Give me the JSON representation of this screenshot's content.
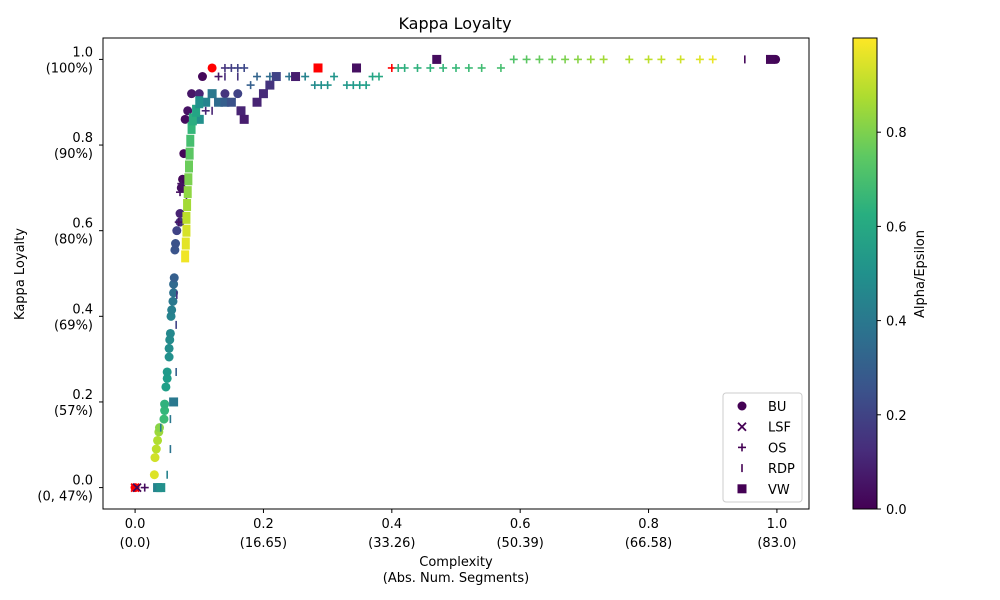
{
  "chart_data": {
    "type": "scatter",
    "title": "Kappa Loyalty",
    "xlabel": "Complexity",
    "xlabel2": "(Abs. Num. Segments)",
    "ylabel": "Kappa Loyalty",
    "colorbar_label": "Alpha/Epsilon",
    "xlim": [
      -0.05,
      1.05
    ],
    "ylim": [
      -0.05,
      1.05
    ],
    "x_ticks": [
      {
        "value": 0.0,
        "label": "0.0",
        "sub": "(0.0)"
      },
      {
        "value": 0.2,
        "label": "0.2",
        "sub": "(16.65)"
      },
      {
        "value": 0.4,
        "label": "0.4",
        "sub": "(33.26)"
      },
      {
        "value": 0.6,
        "label": "0.6",
        "sub": "(50.39)"
      },
      {
        "value": 0.8,
        "label": "0.8",
        "sub": "(66.58)"
      },
      {
        "value": 1.0,
        "label": "1.0",
        "sub": "(83.0)"
      }
    ],
    "y_ticks": [
      {
        "value": 0.0,
        "label": "0.0",
        "sub": "(0, 47%)"
      },
      {
        "value": 0.2,
        "label": "0.2",
        "sub": "(57%)"
      },
      {
        "value": 0.4,
        "label": "0.4",
        "sub": "(69%)"
      },
      {
        "value": 0.6,
        "label": "0.6",
        "sub": "(80%)"
      },
      {
        "value": 0.8,
        "label": "0.8",
        "sub": "(90%)"
      },
      {
        "value": 1.0,
        "label": "1.0",
        "sub": "(100%)"
      }
    ],
    "colorbar": {
      "min": 0.0,
      "max": 1.0,
      "ticks": [
        "0.0",
        "0.2",
        "0.4",
        "0.6",
        "0.8"
      ],
      "tick_values": [
        0.0,
        0.2,
        0.4,
        0.6,
        0.8
      ],
      "colormap": "viridis"
    },
    "legend": {
      "position": "lower-right",
      "entries": [
        "BU",
        "LSF",
        "OS",
        "RDP",
        "VW"
      ]
    },
    "highlight_color": "#ff0000",
    "series": [
      {
        "name": "BU",
        "marker": "circle",
        "points": [
          [
            0.03,
            0.03,
            0.95
          ],
          [
            0.031,
            0.07,
            0.93
          ],
          [
            0.033,
            0.09,
            0.9
          ],
          [
            0.035,
            0.11,
            0.88
          ],
          [
            0.037,
            0.13,
            0.85
          ],
          [
            0.038,
            0.14,
            0.82
          ],
          [
            0.045,
            0.16,
            0.68
          ],
          [
            0.046,
            0.18,
            0.66
          ],
          [
            0.046,
            0.195,
            0.64
          ],
          [
            0.048,
            0.235,
            0.56
          ],
          [
            0.05,
            0.255,
            0.55
          ],
          [
            0.05,
            0.27,
            0.54
          ],
          [
            0.053,
            0.305,
            0.5
          ],
          [
            0.053,
            0.325,
            0.49
          ],
          [
            0.054,
            0.345,
            0.48
          ],
          [
            0.055,
            0.36,
            0.47
          ],
          [
            0.056,
            0.4,
            0.45
          ],
          [
            0.057,
            0.415,
            0.43
          ],
          [
            0.059,
            0.435,
            0.4
          ],
          [
            0.06,
            0.455,
            0.37
          ],
          [
            0.06,
            0.475,
            0.34
          ],
          [
            0.061,
            0.49,
            0.3
          ],
          [
            0.062,
            0.555,
            0.26
          ],
          [
            0.063,
            0.57,
            0.25
          ],
          [
            0.065,
            0.6,
            0.2
          ],
          [
            0.07,
            0.62,
            0.14
          ],
          [
            0.07,
            0.64,
            0.1
          ],
          [
            0.072,
            0.7,
            0.04
          ],
          [
            0.074,
            0.72,
            0.02
          ],
          [
            0.076,
            0.78,
            0.01
          ],
          [
            0.078,
            0.86,
            0.03
          ],
          [
            0.082,
            0.88,
            0.05
          ],
          [
            0.088,
            0.92,
            0.06
          ],
          [
            0.1,
            0.92,
            0.1
          ],
          [
            0.105,
            0.96,
            0.02
          ],
          [
            0.12,
            0.98,
            -1
          ],
          [
            0.14,
            0.92,
            0.15
          ],
          [
            0.16,
            0.92,
            0.2
          ],
          [
            0.998,
            1.0,
            0.01
          ],
          [
            0.0,
            0.0,
            -1
          ]
        ]
      },
      {
        "name": "LSF",
        "marker": "x",
        "points": [
          [
            0.0,
            0.0,
            -1
          ],
          [
            0.003,
            0.0,
            0.02
          ]
        ]
      },
      {
        "name": "OS",
        "marker": "plus",
        "points": [
          [
            0.015,
            0.0,
            0.03
          ],
          [
            0.068,
            0.62,
            0.05
          ],
          [
            0.07,
            0.69,
            0.04
          ],
          [
            0.072,
            0.71,
            0.05
          ],
          [
            0.095,
            0.86,
            0.08
          ],
          [
            0.11,
            0.88,
            0.1
          ],
          [
            0.13,
            0.96,
            0.06
          ],
          [
            0.14,
            0.98,
            0.15
          ],
          [
            0.15,
            0.98,
            0.18
          ],
          [
            0.16,
            0.98,
            0.2
          ],
          [
            0.17,
            0.98,
            0.22
          ],
          [
            0.18,
            0.94,
            0.3
          ],
          [
            0.19,
            0.96,
            0.32
          ],
          [
            0.21,
            0.96,
            0.35
          ],
          [
            0.24,
            0.96,
            0.38
          ],
          [
            0.265,
            0.96,
            0.45
          ],
          [
            0.28,
            0.94,
            0.48
          ],
          [
            0.29,
            0.94,
            0.5
          ],
          [
            0.3,
            0.94,
            0.51
          ],
          [
            0.31,
            0.96,
            0.52
          ],
          [
            0.33,
            0.94,
            0.53
          ],
          [
            0.34,
            0.94,
            0.54
          ],
          [
            0.35,
            0.94,
            0.55
          ],
          [
            0.36,
            0.94,
            0.56
          ],
          [
            0.37,
            0.96,
            0.58
          ],
          [
            0.38,
            0.96,
            0.6
          ],
          [
            0.4,
            0.98,
            -1
          ],
          [
            0.41,
            0.98,
            0.62
          ],
          [
            0.42,
            0.98,
            0.63
          ],
          [
            0.44,
            0.98,
            0.64
          ],
          [
            0.46,
            0.98,
            0.65
          ],
          [
            0.48,
            0.98,
            0.66
          ],
          [
            0.5,
            0.98,
            0.67
          ],
          [
            0.52,
            0.98,
            0.68
          ],
          [
            0.54,
            0.98,
            0.69
          ],
          [
            0.57,
            0.98,
            0.7
          ],
          [
            0.59,
            1.0,
            0.72
          ],
          [
            0.61,
            1.0,
            0.74
          ],
          [
            0.63,
            1.0,
            0.76
          ],
          [
            0.65,
            1.0,
            0.78
          ],
          [
            0.67,
            1.0,
            0.8
          ],
          [
            0.69,
            1.0,
            0.82
          ],
          [
            0.71,
            1.0,
            0.84
          ],
          [
            0.73,
            1.0,
            0.86
          ],
          [
            0.77,
            1.0,
            0.88
          ],
          [
            0.8,
            1.0,
            0.9
          ],
          [
            0.82,
            1.0,
            0.91
          ],
          [
            0.85,
            1.0,
            0.93
          ],
          [
            0.88,
            1.0,
            0.95
          ],
          [
            0.9,
            1.0,
            0.97
          ]
        ]
      },
      {
        "name": "RDP",
        "marker": "tick",
        "points": [
          [
            0.04,
            0.14,
            0.42
          ],
          [
            0.055,
            0.16,
            0.4
          ],
          [
            0.055,
            0.09,
            0.38
          ],
          [
            0.05,
            0.03,
            0.45
          ],
          [
            0.064,
            0.27,
            0.3
          ],
          [
            0.064,
            0.38,
            0.2
          ],
          [
            0.065,
            0.45,
            0.15
          ],
          [
            0.08,
            0.68,
            0.05
          ],
          [
            0.1,
            0.88,
            0.08
          ],
          [
            0.12,
            0.88,
            0.1
          ],
          [
            0.14,
            0.96,
            0.12
          ],
          [
            0.16,
            0.96,
            0.15
          ],
          [
            0.95,
            1.0,
            0.02
          ]
        ]
      },
      {
        "name": "VW",
        "marker": "square",
        "points": [
          [
            0.035,
            0.0,
            0.45
          ],
          [
            0.04,
            0.0,
            0.5
          ],
          [
            0.06,
            0.2,
            0.4
          ],
          [
            0.1,
            0.86,
            0.5
          ],
          [
            0.11,
            0.9,
            0.45
          ],
          [
            0.12,
            0.92,
            0.4
          ],
          [
            0.13,
            0.9,
            0.35
          ],
          [
            0.14,
            0.9,
            0.3
          ],
          [
            0.15,
            0.9,
            0.25
          ],
          [
            0.165,
            0.88,
            0.1
          ],
          [
            0.17,
            0.86,
            0.08
          ],
          [
            0.19,
            0.9,
            0.1
          ],
          [
            0.2,
            0.92,
            0.12
          ],
          [
            0.21,
            0.94,
            0.15
          ],
          [
            0.22,
            0.96,
            0.2
          ],
          [
            0.25,
            0.96,
            0.08
          ],
          [
            0.285,
            0.98,
            -1
          ],
          [
            0.345,
            0.98,
            0.04
          ],
          [
            0.47,
            1.0,
            0.03
          ],
          [
            0.99,
            1.0,
            0.02
          ]
        ]
      },
      {
        "name": "curve",
        "marker": "square-small",
        "points": [
          [
            0.078,
            0.54,
            0.98
          ],
          [
            0.079,
            0.57,
            0.96
          ],
          [
            0.08,
            0.6,
            0.94
          ],
          [
            0.08,
            0.63,
            0.9
          ],
          [
            0.081,
            0.66,
            0.86
          ],
          [
            0.082,
            0.69,
            0.83
          ],
          [
            0.083,
            0.72,
            0.8
          ],
          [
            0.084,
            0.75,
            0.77
          ],
          [
            0.085,
            0.78,
            0.74
          ],
          [
            0.086,
            0.81,
            0.7
          ],
          [
            0.088,
            0.84,
            0.66
          ],
          [
            0.09,
            0.86,
            0.62
          ],
          [
            0.095,
            0.88,
            0.58
          ],
          [
            0.1,
            0.9,
            0.5
          ]
        ]
      }
    ]
  }
}
